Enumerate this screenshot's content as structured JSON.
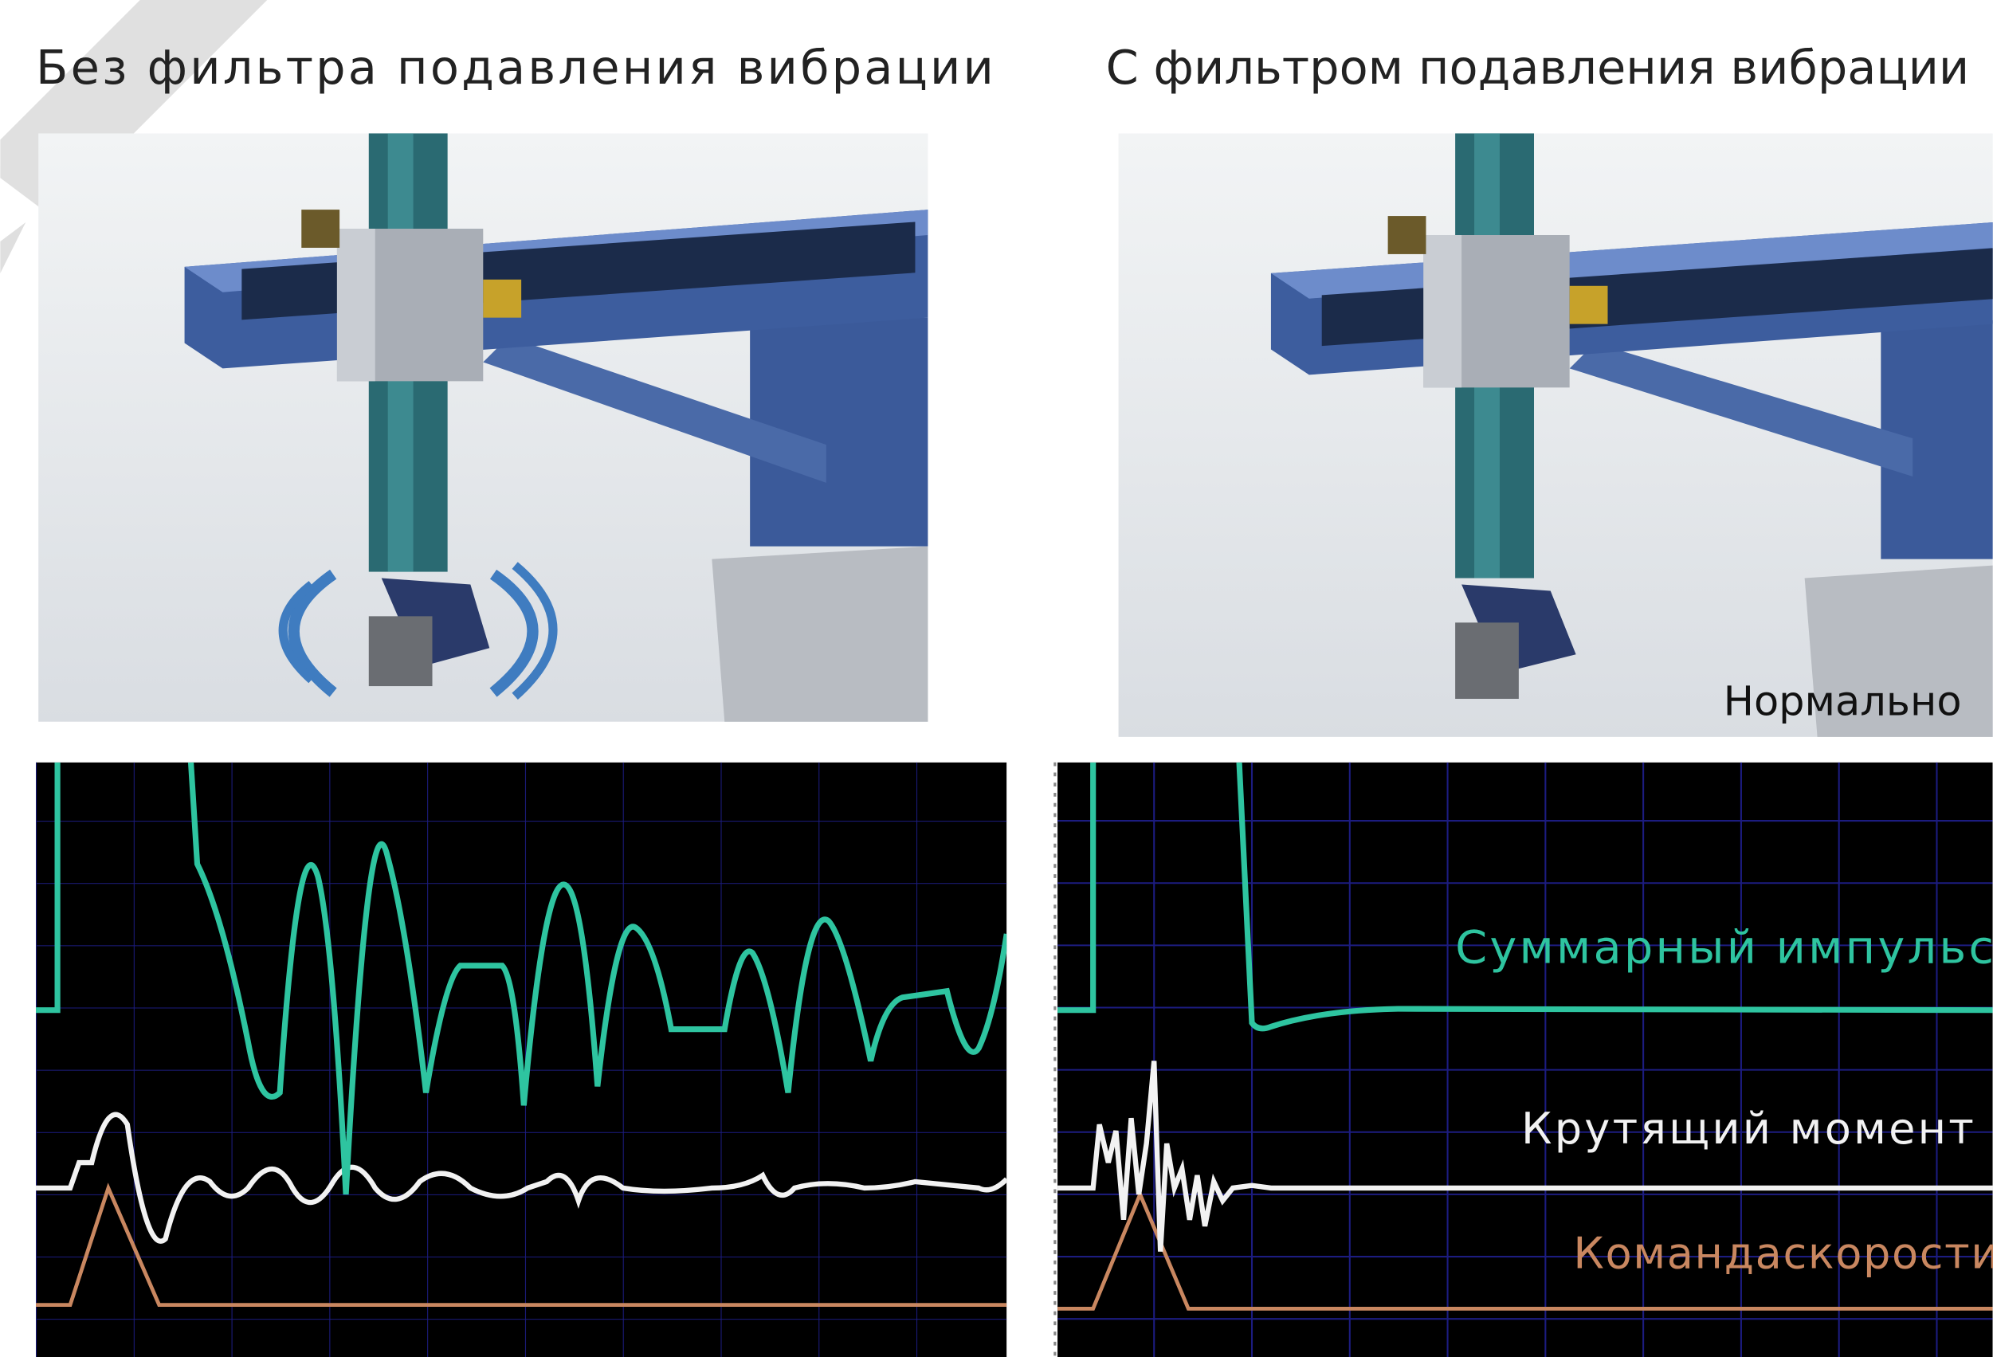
{
  "titles": {
    "left": "Без фильтра подавления вибрации",
    "right": "С фильтром подавления вибрации"
  },
  "labels": {
    "normal": "Нормально",
    "total_pulse": "Суммарный импульс",
    "torque": "Крутящий момент",
    "speed_command": "Командаскорости"
  }
}
